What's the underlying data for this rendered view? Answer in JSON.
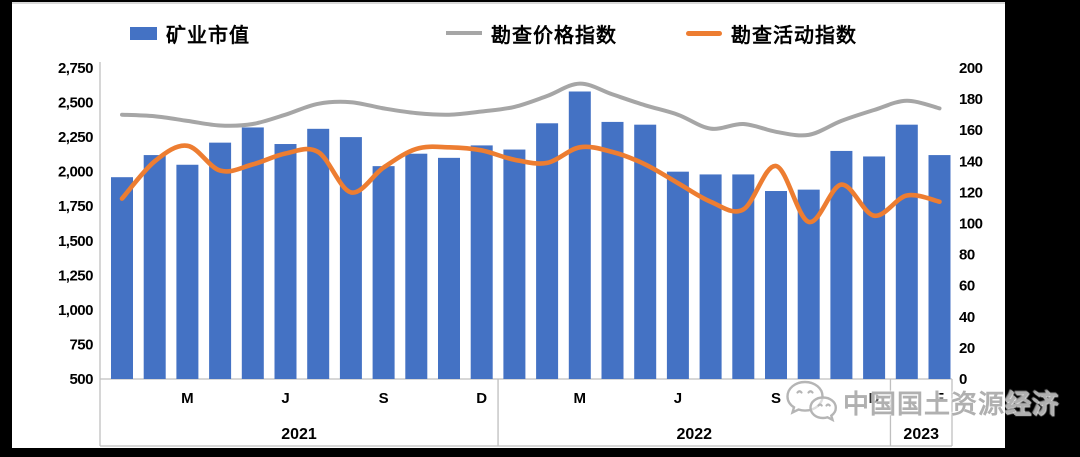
{
  "legend": {
    "items": [
      {
        "label": "矿业市值",
        "swatch": "bar",
        "color": "#4472C4"
      },
      {
        "label": "勘查价格指数",
        "swatch": "line",
        "color": "#A6A6A6"
      },
      {
        "label": "勘查活动指数",
        "swatch": "line",
        "color": "#ED7D31"
      }
    ]
  },
  "watermark": {
    "text": "中国国土资源经济",
    "icon": "wechat-icon",
    "color": "#b0b0b0"
  },
  "colors": {
    "bar": "#4472C4",
    "price_line": "#A6A6A6",
    "activity_line": "#ED7D31",
    "axis_border": "#BFBFBF",
    "text": "#000000"
  },
  "chart_data": {
    "type": "bar",
    "subtype": "combo-bar-line",
    "title": "",
    "categories": [
      "Jan 2021",
      "Feb 2021",
      "Mar 2021",
      "Apr 2021",
      "May 2021",
      "Jun 2021",
      "Jul 2021",
      "Aug 2021",
      "Sep 2021",
      "Oct 2021",
      "Nov 2021",
      "Dec 2021",
      "Jan 2022",
      "Feb 2022",
      "Mar 2022",
      "Apr 2022",
      "May 2022",
      "Jun 2022",
      "Jul 2022",
      "Aug 2022",
      "Sep 2022",
      "Oct 2022",
      "Nov 2022",
      "Dec 2022",
      "Jan 2023",
      "Feb 2023"
    ],
    "series": [
      {
        "name": "矿业市值",
        "type": "bar",
        "axis": "left",
        "color": "#4472C4",
        "values": [
          1960,
          2120,
          2050,
          2210,
          2320,
          2200,
          2310,
          2250,
          2040,
          2130,
          2100,
          2190,
          2160,
          2350,
          2580,
          2360,
          2340,
          2000,
          1980,
          1980,
          1860,
          1870,
          2150,
          2110,
          2340,
          2120
        ]
      },
      {
        "name": "勘查价格指数",
        "type": "line",
        "axis": "right",
        "color": "#A6A6A6",
        "values": [
          170,
          169,
          166,
          163,
          164,
          170,
          177,
          178,
          174,
          171,
          170,
          172,
          175,
          182,
          190,
          183,
          176,
          170,
          161,
          164,
          159,
          157,
          166,
          173,
          179,
          174
        ]
      },
      {
        "name": "勘查活动指数",
        "type": "line",
        "axis": "right",
        "color": "#ED7D31",
        "values": [
          116,
          140,
          150,
          134,
          138,
          145,
          146,
          120,
          136,
          148,
          149,
          147,
          141,
          139,
          149,
          146,
          138,
          126,
          114,
          109,
          137,
          101,
          125,
          105,
          118,
          114
        ]
      }
    ],
    "left_axis": {
      "min": 500,
      "max": 2750,
      "ticks": [
        "2,750",
        "2,500",
        "2,250",
        "2,000",
        "1,750",
        "1,500",
        "1,250",
        "1,000",
        "750",
        "500"
      ]
    },
    "right_axis": {
      "min": 0,
      "max": 200,
      "ticks": [
        "200",
        "180",
        "160",
        "140",
        "120",
        "100",
        "80",
        "60",
        "40",
        "20",
        "0"
      ]
    },
    "x_axis": {
      "month_labels": [
        {
          "text": "M",
          "index": 2
        },
        {
          "text": "J",
          "index": 5
        },
        {
          "text": "S",
          "index": 8
        },
        {
          "text": "D",
          "index": 11
        },
        {
          "text": "M",
          "index": 14
        },
        {
          "text": "J",
          "index": 17
        },
        {
          "text": "S",
          "index": 20
        },
        {
          "text": "D",
          "index": 23
        },
        {
          "text": "F",
          "index": 25
        }
      ],
      "year_groups": [
        {
          "label": "2021",
          "from": 0,
          "to": 11
        },
        {
          "label": "2022",
          "from": 12,
          "to": 23
        },
        {
          "label": "2023",
          "from": 24,
          "to": 25
        }
      ]
    },
    "grid": false,
    "legend_position": "top"
  }
}
